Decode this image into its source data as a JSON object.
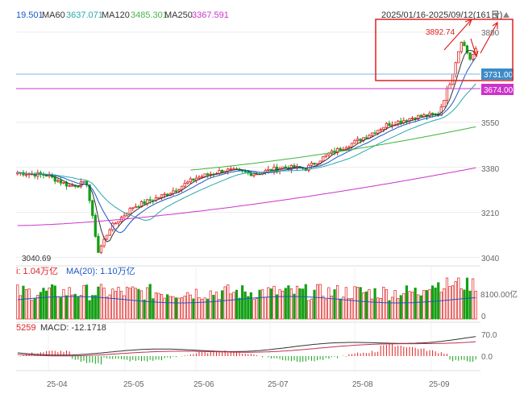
{
  "header": {
    "ma_items": [
      {
        "label": "19.501",
        "color": "#1a56c7"
      },
      {
        "label": "MA60",
        "color": "#333333"
      },
      {
        "label": "3637.071",
        "color": "#2aa7a7"
      },
      {
        "label": "MA120",
        "color": "#333333"
      },
      {
        "label": "3485.301",
        "color": "#4bb24b"
      },
      {
        "label": "MA250",
        "color": "#333333"
      },
      {
        "label": "3367.591",
        "color": "#cc33cc"
      }
    ],
    "date_range": "2025/01/16-2025/09/12(161日)"
  },
  "price_labels": {
    "high": "3892.74",
    "low": "3040.69",
    "level1": "3731.00",
    "level2": "3674.00"
  },
  "volume_header": {
    "vol": "i: 1.04万亿",
    "ma20": "MA(20): 1.10万亿"
  },
  "macd_header": {
    "prefix": "5259",
    "macd": "MACD: -12.1718"
  },
  "colors": {
    "up": "#e02020",
    "down": "#14a014",
    "ma5": "#1a56c7",
    "ma20": "#2aa7a7",
    "ma60": "#3cb43c",
    "ma250": "#cc33cc",
    "level1": "#3c8cc8",
    "level2": "#cc33cc",
    "annotation": "#e02020"
  },
  "chart_data": {
    "type": "candlestick",
    "y_ticks": [
      3040,
      3210,
      3380,
      3550,
      3890
    ],
    "x_ticks": [
      "25-04",
      "25-05",
      "25-06",
      "25-07",
      "25-08",
      "25-09"
    ],
    "volume_ticks": [
      "8100.00亿",
      "0"
    ],
    "macd_ticks": [
      "70.0",
      "0.0"
    ],
    "levels": [
      3731.0,
      3674.0
    ],
    "high": 3892.74,
    "low": 3040.69,
    "ylim": [
      3020,
      3920
    ]
  }
}
